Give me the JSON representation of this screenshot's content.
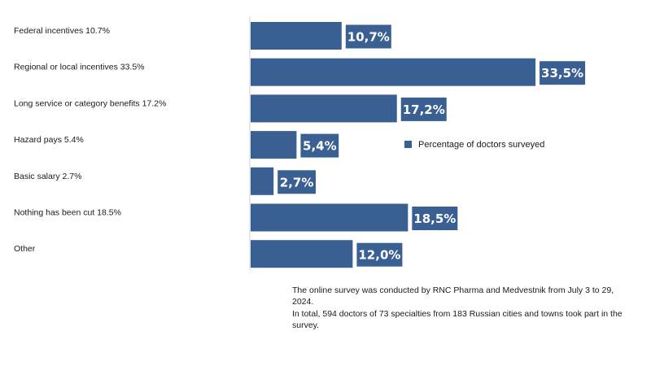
{
  "chart_data": {
    "type": "bar",
    "orientation": "horizontal",
    "categories": [
      "Federal incentives 10.7%",
      "Regional or local incentives 33.5%",
      "Long service or category benefits 17.2%",
      "Hazard pays 5.4%",
      "Basic salary 2.7%",
      "Nothing has been cut 18.5%",
      "Other"
    ],
    "series": [
      {
        "name": "Percentage of doctors surveyed",
        "values": [
          10.7,
          33.5,
          17.2,
          5.4,
          2.7,
          18.5,
          12.0
        ],
        "data_labels": [
          "10,7%",
          "33,5%",
          "17,2%",
          "5,4%",
          "2,7%",
          "18,5%",
          "12,0%"
        ],
        "color": "#3a5f93"
      }
    ],
    "xlim": [
      0,
      40
    ],
    "grid": false,
    "legend": "right"
  },
  "colors": {
    "bar": "#3a5f93",
    "label_box": "#3a5f93",
    "axis": "#d0d0d0"
  },
  "notes": [
    "The online survey was conducted by RNC Pharma and Medvestnik from July 3 to 29, 2024.",
    "In total, 594 doctors of 73 specialties from 183 Russian cities and towns took part in the survey."
  ]
}
